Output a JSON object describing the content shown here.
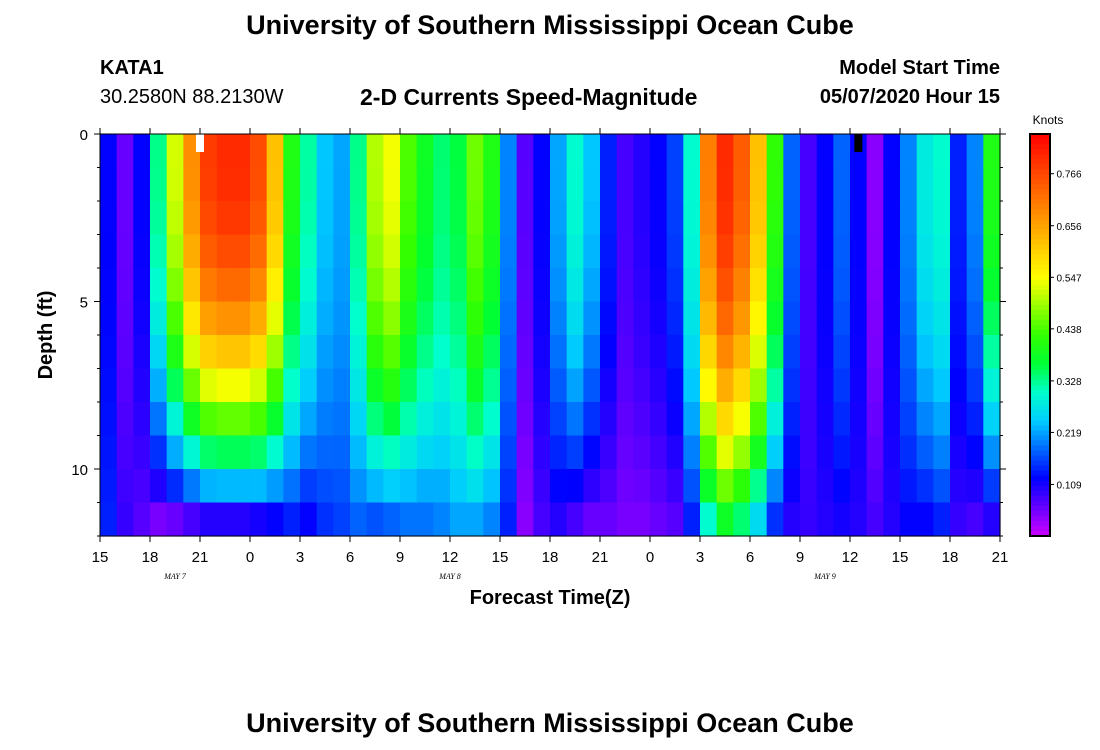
{
  "header": {
    "title": "University of Southern Mississippi Ocean Cube",
    "station_id": "KATA1",
    "station_coords": "30.2580N 88.2130W",
    "subtitle": "2-D Currents Speed-Magnitude",
    "model_start_label": "Model Start Time",
    "model_start_value": "05/07/2020 Hour 15"
  },
  "footer": {
    "title": "University of Southern Mississippi Ocean Cube"
  },
  "chart_data": {
    "type": "heatmap",
    "title": "2-D Currents Speed-Magnitude",
    "xlabel": "Forecast Time(Z)",
    "ylabel": "Depth (ft)",
    "x_ticks": [
      "15",
      "18",
      "21",
      "0",
      "3",
      "6",
      "9",
      "12",
      "15",
      "18",
      "21",
      "0",
      "3",
      "6",
      "9",
      "12",
      "15",
      "18",
      "21"
    ],
    "date_labels": [
      {
        "label": "MAY 7",
        "hour_index": 4.5
      },
      {
        "label": "MAY 8",
        "hour_index": 21
      },
      {
        "label": "MAY 9",
        "hour_index": 43.5
      }
    ],
    "y_ticks": [
      "0",
      "5",
      "10"
    ],
    "y_range_ft": [
      0,
      12
    ],
    "x_range_hours": [
      0,
      54
    ],
    "colorbar": {
      "title": "Knots",
      "ticks": [
        "0.766",
        "0.656",
        "0.547",
        "0.438",
        "0.328",
        "0.219",
        "0.109"
      ],
      "range": [
        0,
        0.85
      ],
      "colors": [
        "#cc00ff",
        "#6600ff",
        "#0000ff",
        "#0066ff",
        "#00ccff",
        "#00ffcc",
        "#00ff33",
        "#33ff00",
        "#99ff00",
        "#ffff00",
        "#ffcc00",
        "#ff9900",
        "#ff6600",
        "#ff3300",
        "#ff0000"
      ]
    },
    "missing_markers": [
      {
        "hour": 6,
        "color": "#ffffff"
      },
      {
        "hour": 45.5,
        "color": "#000000"
      }
    ],
    "hours": [
      0,
      1,
      2,
      3,
      4,
      5,
      6,
      7,
      8,
      9,
      10,
      11,
      12,
      13,
      14,
      15,
      16,
      17,
      18,
      19,
      20,
      21,
      22,
      23,
      24,
      25,
      26,
      27,
      28,
      29,
      30,
      31,
      32,
      33,
      34,
      35,
      36,
      37,
      38,
      39,
      40,
      41,
      42,
      43,
      44,
      45,
      46,
      47,
      48,
      49,
      50,
      51,
      52,
      53
    ],
    "surface_knots": [
      0.12,
      0.06,
      0.12,
      0.33,
      0.52,
      0.68,
      0.78,
      0.8,
      0.8,
      0.76,
      0.62,
      0.4,
      0.32,
      0.24,
      0.22,
      0.33,
      0.5,
      0.54,
      0.44,
      0.38,
      0.34,
      0.36,
      0.46,
      0.4,
      0.2,
      0.07,
      0.12,
      0.22,
      0.3,
      0.24,
      0.14,
      0.08,
      0.1,
      0.12,
      0.16,
      0.3,
      0.7,
      0.8,
      0.74,
      0.62,
      0.42,
      0.18,
      0.08,
      0.12,
      0.18,
      0.12,
      0.04,
      0.12,
      0.2,
      0.28,
      0.3,
      0.14,
      0.2,
      0.4
    ],
    "bottom_knots": [
      0.14,
      0.09,
      0.07,
      0.05,
      0.06,
      0.08,
      0.1,
      0.1,
      0.1,
      0.11,
      0.12,
      0.14,
      0.12,
      0.15,
      0.16,
      0.18,
      0.17,
      0.18,
      0.19,
      0.19,
      0.2,
      0.22,
      0.22,
      0.2,
      0.14,
      0.04,
      0.08,
      0.1,
      0.08,
      0.06,
      0.06,
      0.05,
      0.05,
      0.06,
      0.07,
      0.14,
      0.3,
      0.38,
      0.34,
      0.26,
      0.15,
      0.1,
      0.09,
      0.1,
      0.11,
      0.1,
      0.08,
      0.1,
      0.12,
      0.12,
      0.14,
      0.09,
      0.08,
      0.1
    ]
  }
}
